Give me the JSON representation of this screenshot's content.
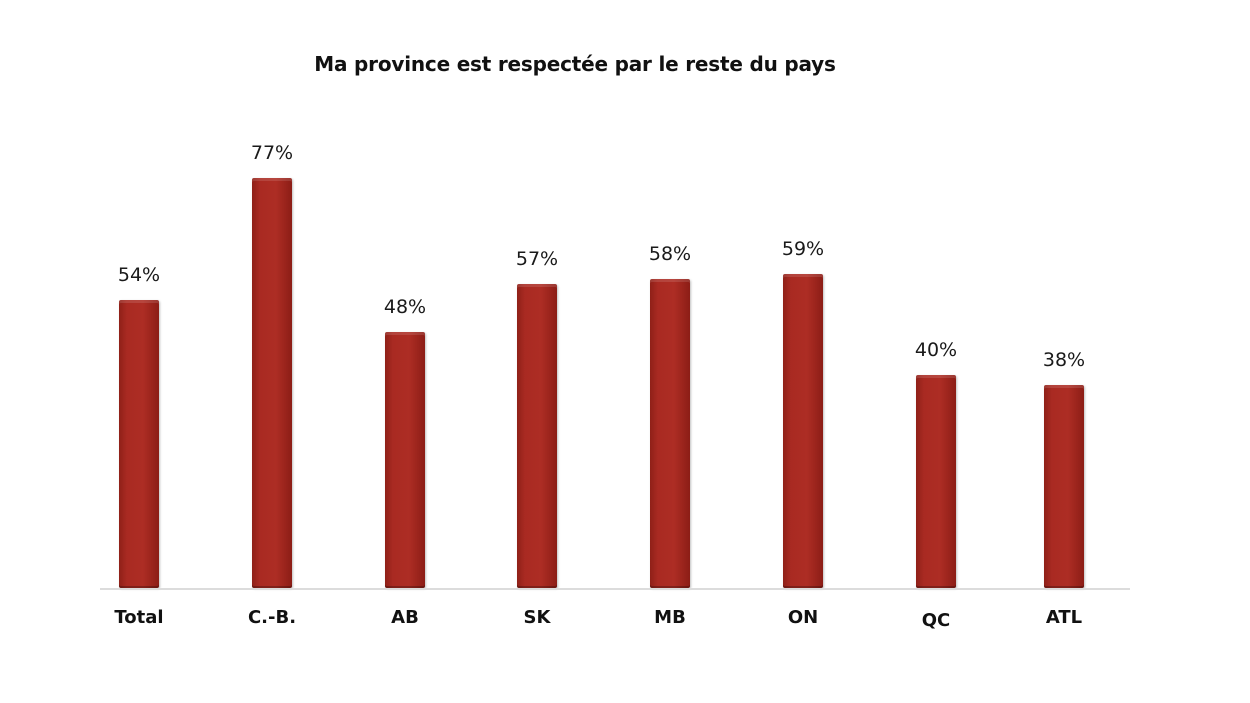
{
  "chart_data": {
    "type": "bar",
    "title": "Ma province est respectée par le reste du pays",
    "categories": [
      "Total",
      "C.-B.",
      "AB",
      "SK",
      "MB",
      "ON",
      "QC",
      "ATL"
    ],
    "values": [
      54,
      77,
      48,
      57,
      58,
      59,
      40,
      38
    ],
    "value_labels": [
      "54%",
      "77%",
      "48%",
      "57%",
      "58%",
      "59%",
      "40%",
      "38%"
    ],
    "xlabel": "",
    "ylabel": "",
    "ylim": [
      0,
      80
    ],
    "unit": "%",
    "grid": false,
    "legend": null,
    "bar_color": "#a32a22"
  }
}
